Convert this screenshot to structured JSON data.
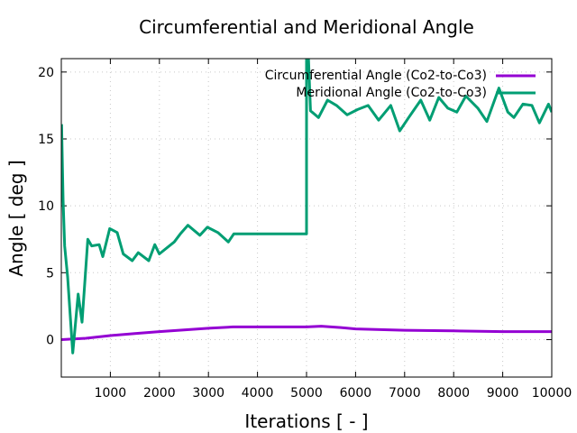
{
  "chart_data": {
    "type": "line",
    "title": "Circumferential and Meridional Angle",
    "xlabel": "Iterations [ - ]",
    "ylabel": "Angle [ deg ]",
    "xlim": [
      0,
      10000
    ],
    "ylim": [
      -2.8,
      21
    ],
    "xticks": [
      1000,
      2000,
      3000,
      4000,
      5000,
      6000,
      7000,
      8000,
      9000,
      10000
    ],
    "xtick_labels": [
      "1000",
      "2000",
      "3000",
      "4000",
      "5000",
      "6000",
      "7000",
      "8000",
      "9000",
      "10000"
    ],
    "yticks": [
      0,
      5,
      10,
      15,
      20
    ],
    "ytick_labels": [
      "0",
      "5",
      "10",
      "15",
      "20"
    ],
    "grid": true,
    "legend_position": "top-right",
    "series": [
      {
        "name": "Circumferential Angle (Co2-to-Co3)",
        "color": "#9400d3",
        "x": [
          0,
          500,
          1000,
          1500,
          2000,
          2500,
          3000,
          3500,
          4000,
          5000,
          5300,
          5700,
          6000,
          7000,
          8000,
          9000,
          10000
        ],
        "y": [
          0,
          0.1,
          0.3,
          0.45,
          0.6,
          0.72,
          0.85,
          0.95,
          0.95,
          0.95,
          1.0,
          0.9,
          0.8,
          0.7,
          0.65,
          0.6,
          0.6
        ]
      },
      {
        "name": "Meridional Angle (Co2-to-Co3)",
        "color": "#009e73",
        "x": [
          5,
          37,
          68,
          129,
          233,
          343,
          423,
          540,
          620,
          772,
          846,
          987,
          1140,
          1263,
          1446,
          1568,
          1783,
          1906,
          1998,
          2304,
          2426,
          2580,
          2825,
          2978,
          3193,
          3407,
          3517,
          5000,
          5000,
          5030,
          5080,
          5245,
          5429,
          5612,
          5827,
          6042,
          6256,
          6471,
          6716,
          6900,
          7083,
          7329,
          7513,
          7697,
          7881,
          8064,
          8248,
          8493,
          8677,
          8922,
          9105,
          9228,
          9412,
          9596,
          9749,
          9933,
          10000
        ],
        "y": [
          16.1,
          10.4,
          7.0,
          4.7,
          -1.0,
          3.4,
          1.3,
          7.5,
          7.0,
          7.1,
          6.2,
          8.3,
          8.0,
          6.4,
          5.9,
          6.5,
          5.9,
          7.1,
          6.4,
          7.3,
          7.9,
          8.55,
          7.8,
          8.4,
          8.0,
          7.3,
          7.9,
          7.9,
          22,
          22,
          17.1,
          16.6,
          17.9,
          17.5,
          16.8,
          17.2,
          17.5,
          16.4,
          17.5,
          15.6,
          16.6,
          17.9,
          16.4,
          18.1,
          17.3,
          17.0,
          18.2,
          17.3,
          16.3,
          18.8,
          17.0,
          16.6,
          17.6,
          17.5,
          16.2,
          17.6,
          17.0
        ]
      }
    ]
  }
}
